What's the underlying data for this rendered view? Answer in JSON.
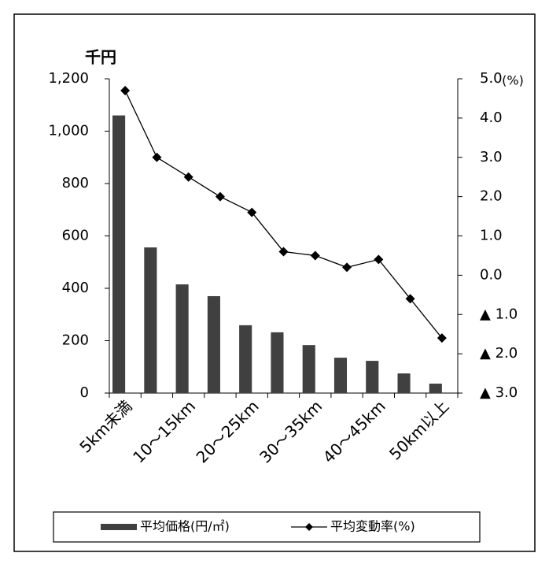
{
  "chart_data": {
    "type": "bar_line",
    "y_label": "千円",
    "y2_label": "(%)",
    "categories": [
      "5km未満",
      null,
      "10〜15km",
      null,
      "20〜25km",
      null,
      "30〜35km",
      null,
      "40〜45km",
      null,
      "50km以上"
    ],
    "series": [
      {
        "name": "平均価格(円/㎡)",
        "type": "bar",
        "color": "#404040",
        "values": [
          1060,
          556,
          415,
          370,
          259,
          232,
          183,
          135,
          123,
          75,
          36
        ]
      },
      {
        "name": "平均変動率(%)",
        "type": "line",
        "axis": "y2",
        "color": "#000000",
        "values": [
          4.7,
          3.0,
          2.5,
          2.0,
          1.6,
          0.6,
          0.5,
          0.2,
          0.4,
          -0.6,
          -1.6
        ]
      }
    ],
    "ylim": [
      0,
      1200
    ],
    "yticks": [
      0,
      200,
      400,
      600,
      800,
      {
        "value": 1000,
        "label": "1,000"
      },
      {
        "value": 1200,
        "label": "1,200"
      }
    ],
    "y2lim": [
      -3,
      5
    ],
    "y2ticks": [
      {
        "value": -3,
        "label": "▲ 3.0"
      },
      {
        "value": -2,
        "label": "▲ 2.0"
      },
      {
        "value": -1,
        "label": "▲ 1.0"
      },
      {
        "value": 0,
        "label": "0.0"
      },
      {
        "value": 1,
        "label": "1.0"
      },
      {
        "value": 2,
        "label": "2.0"
      },
      {
        "value": 3,
        "label": "3.0"
      },
      {
        "value": 4,
        "label": "4.0"
      },
      {
        "value": 5,
        "label": "5.0"
      }
    ],
    "legend": "bottom"
  }
}
